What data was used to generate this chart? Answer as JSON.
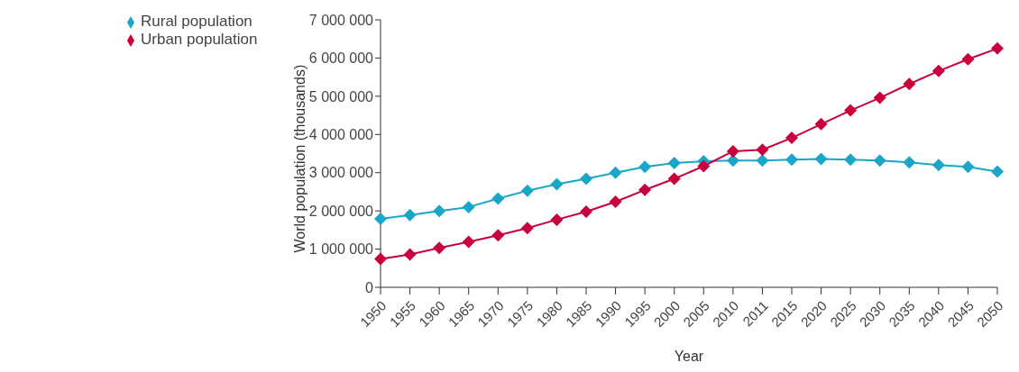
{
  "chart_data": {
    "type": "line",
    "xlabel": "Year",
    "ylabel": "World population (thousands)",
    "categories": [
      "1950",
      "1955",
      "1960",
      "1965",
      "1970",
      "1975",
      "1980",
      "1985",
      "1990",
      "1995",
      "2000",
      "2005",
      "2010",
      "2011",
      "2015",
      "2020",
      "2025",
      "2030",
      "2035",
      "2040",
      "2045",
      "2050"
    ],
    "series": [
      {
        "name": "Rural population",
        "color": "#1aa6c8",
        "values": [
          1790000,
          1890000,
          2000000,
          2100000,
          2320000,
          2530000,
          2700000,
          2840000,
          3000000,
          3150000,
          3250000,
          3300000,
          3320000,
          3320000,
          3340000,
          3360000,
          3340000,
          3320000,
          3270000,
          3200000,
          3150000,
          3030000
        ]
      },
      {
        "name": "Urban population",
        "color": "#c8003c",
        "values": [
          740000,
          860000,
          1030000,
          1190000,
          1360000,
          1550000,
          1770000,
          1980000,
          2240000,
          2550000,
          2840000,
          3170000,
          3560000,
          3600000,
          3910000,
          4270000,
          4630000,
          4960000,
          5320000,
          5660000,
          5970000,
          6250000
        ]
      }
    ],
    "ylim": [
      0,
      7000000
    ],
    "yticks": [
      0,
      {
        "value": 1000000,
        "label": "1 000 000"
      },
      {
        "value": 2000000,
        "label": "2 000 000"
      },
      {
        "value": 3000000,
        "label": "3 000 000"
      },
      {
        "value": 4000000,
        "label": "4 000 000"
      },
      {
        "value": 5000000,
        "label": "5 000 000"
      },
      {
        "value": 6000000,
        "label": "6 000 000"
      },
      {
        "value": 7000000,
        "label": "7 000 000"
      }
    ],
    "legend": "top left",
    "marker": "diamond",
    "line_style": "solid"
  }
}
